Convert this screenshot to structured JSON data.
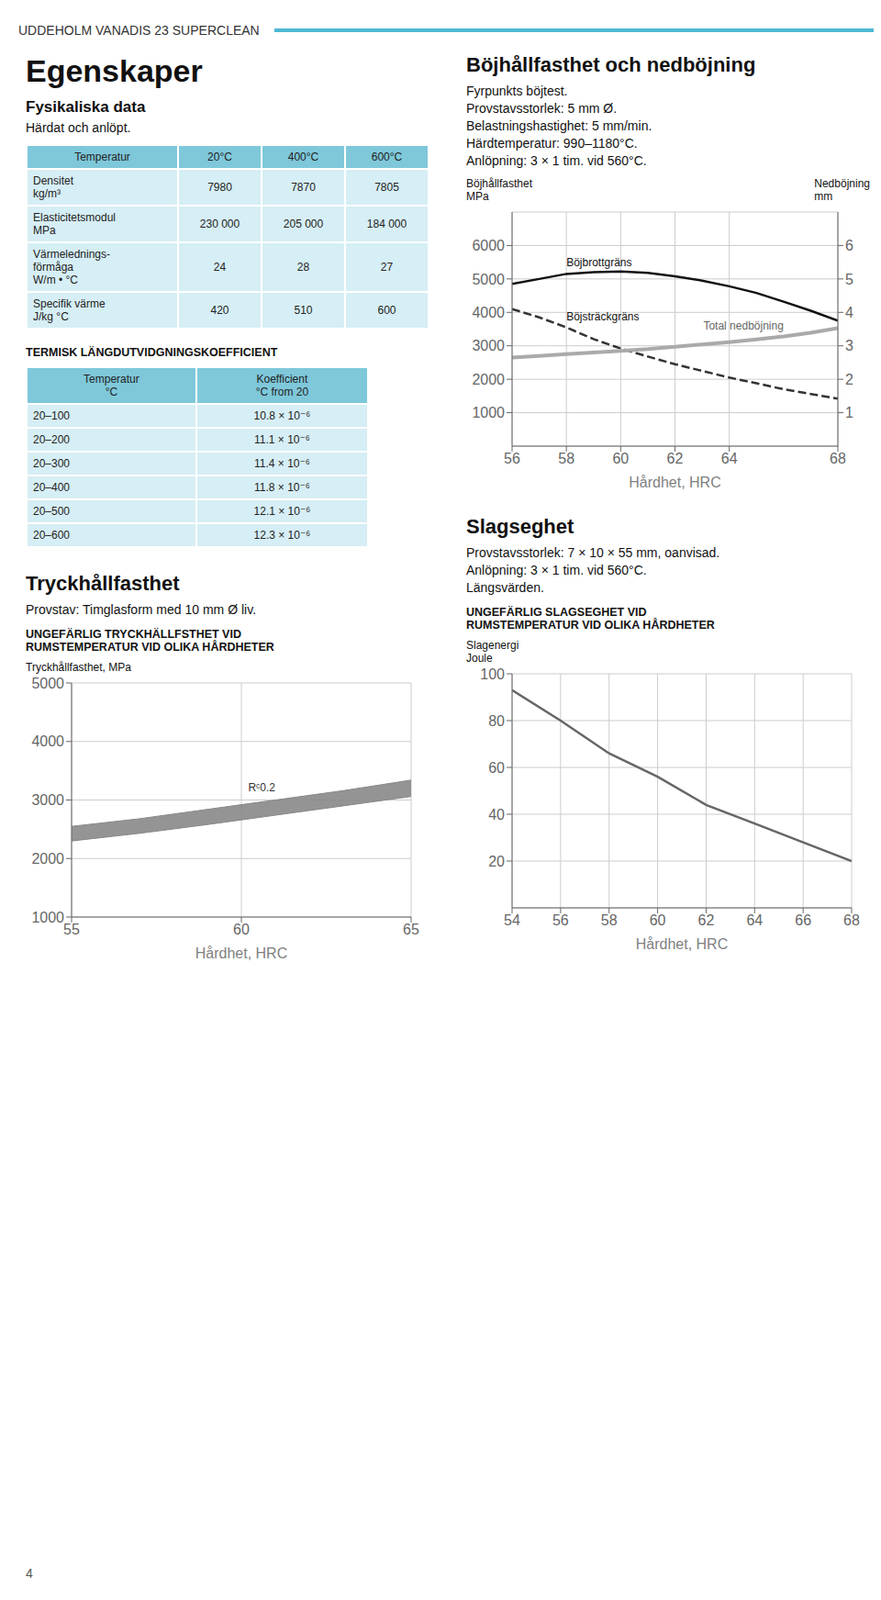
{
  "title": "UDDEHOLM VANADIS 23 SUPERCLEAN",
  "page_number": "4",
  "heading": "Egenskaper",
  "subheading": "Fysikaliska data",
  "subtitle": "Härdat och anlöpt.",
  "tables": [
    {
      "header": [
        "Temperatur",
        "20°C",
        "400°C",
        "600°C"
      ],
      "rows": [
        [
          "Densitet\nkg/m³",
          "7980",
          "7870",
          "7805"
        ],
        [
          "Elasticitetsmodul\nMPa",
          "230 000",
          "205 000",
          "184 000"
        ],
        [
          "Värmelednings-\nförmåga\nW/m • °C",
          "24",
          "28",
          "27"
        ],
        [
          "Specifik värme\nJ/kg °C",
          "420",
          "510",
          "600"
        ]
      ]
    },
    {
      "title": "TERMISK LÄNGDUTVIDGNINGSKOEFFICIENT",
      "header": [
        "Temperatur\n°C",
        "Koefficient\n°C from 20"
      ],
      "rows": [
        [
          "20–100",
          "10.8 × 10⁻⁶"
        ],
        [
          "20–200",
          "11.1 × 10⁻⁶"
        ],
        [
          "20–300",
          "11.4 × 10⁻⁶"
        ],
        [
          "20–400",
          "11.8 × 10⁻⁶"
        ],
        [
          "20–500",
          "12.1 × 10⁻⁶"
        ],
        [
          "20–600",
          "12.3 × 10⁻⁶"
        ]
      ]
    }
  ],
  "chart_data": [
    {
      "type": "area",
      "title": "Tryckhållfasthet",
      "subtitle": [
        "Provstav: Timglasform med 10 mm Ø liv."
      ],
      "caption": "UNGEFÄRLIG TRYCKHÄLLFSTHET VID\nRUMSTEMPERATUR VID OLIKA HÅRDHETER",
      "ylabel": "Tryckhållfasthet, MPa",
      "xlabel": "Hårdhet, HRC",
      "x": [
        55,
        57,
        59,
        61,
        63,
        65
      ],
      "series": [
        {
          "name": "Rᶜ0.2",
          "color": "#888888",
          "low": [
            2300,
            2430,
            2580,
            2740,
            2900,
            3060
          ],
          "high": [
            2550,
            2680,
            2840,
            3000,
            3160,
            3340
          ]
        }
      ],
      "xlim": [
        55,
        65
      ],
      "ylim": [
        1000,
        5000
      ],
      "xticks": [
        55,
        60,
        65
      ],
      "yticks": [
        1000,
        2000,
        3000,
        4000,
        5000
      ],
      "grid": true
    },
    {
      "type": "line",
      "title": "Böjhållfasthet och nedböjning",
      "subtitle": [
        "Fyrpunkts böjtest.",
        "Provstavsstorlek: 5 mm Ø.",
        "Belastningshastighet: 5 mm/min.",
        "Härdtemperatur: 990–1180°C.",
        "Anlöpning: 3 × 1 tim. vid 560°C."
      ],
      "ylabel": "Böjhållfasthet\nMPa",
      "y2label": "Nedböjning\nmm",
      "xlabel": "Hårdhet, HRC",
      "x": [
        56,
        57,
        58,
        59,
        60,
        61,
        62,
        63,
        64,
        65,
        66,
        67,
        68
      ],
      "series": [
        {
          "name": "Böjbrottgräns",
          "color": "#111111",
          "line_style": "solid",
          "values": [
            4850,
            5000,
            5150,
            5200,
            5220,
            5180,
            5080,
            4950,
            4780,
            4580,
            4320,
            4050,
            3750
          ]
        },
        {
          "name": "Böjsträckgräns",
          "color": "#333333",
          "line_style": "dashed",
          "values": [
            4100,
            3850,
            3550,
            3200,
            2920,
            2680,
            2450,
            2250,
            2050,
            1880,
            1700,
            1560,
            1420
          ]
        },
        {
          "name": "Total nedböjning",
          "color": "#aaaaaa",
          "line_style": "solid",
          "values": [
            2650,
            2700,
            2750,
            2800,
            2850,
            2900,
            2970,
            3040,
            3110,
            3190,
            3280,
            3390,
            3530
          ]
        }
      ],
      "xlim": [
        56,
        68
      ],
      "ylim": [
        0,
        7000
      ],
      "xticks": [
        56,
        58,
        60,
        62,
        64,
        68
      ],
      "yticks": [
        1000,
        2000,
        3000,
        4000,
        5000,
        6000
      ],
      "y2lim": [
        0,
        7
      ],
      "y2ticks": [
        1,
        2,
        3,
        4,
        5,
        6
      ],
      "grid": true
    },
    {
      "type": "line",
      "title": "Slagseghet",
      "subtitle": [
        "Provstavsstorlek: 7 × 10 × 55 mm, oanvisad.",
        "Anlöpning: 3 × 1 tim. vid 560°C.",
        "Längsvärden."
      ],
      "caption": "UNGEFÄRLIG SLAGSEGHET VID\nRUMSTEMPERATUR VID OLIKA HÅRDHETER",
      "ylabel": "Slagenergi\nJoule",
      "xlabel": "Hårdhet, HRC",
      "x": [
        54,
        56,
        58,
        60,
        62,
        64,
        66,
        68
      ],
      "series": [
        {
          "color": "#666666",
          "line_style": "solid",
          "values": [
            93,
            80,
            66,
            56,
            44,
            36,
            28,
            20
          ]
        }
      ],
      "xlim": [
        54,
        68
      ],
      "ylim": [
        0,
        100
      ],
      "xticks": [
        54,
        56,
        58,
        60,
        62,
        64,
        66,
        68
      ],
      "yticks": [
        20,
        40,
        60,
        80,
        100
      ],
      "grid": true
    }
  ]
}
